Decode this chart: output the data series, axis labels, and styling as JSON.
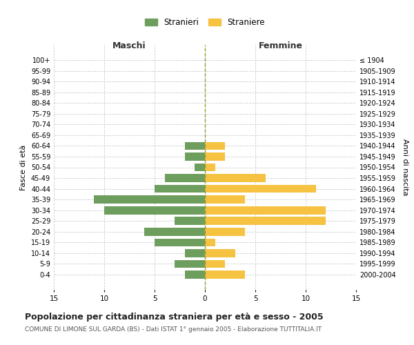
{
  "age_groups": [
    "100+",
    "95-99",
    "90-94",
    "85-89",
    "80-84",
    "75-79",
    "70-74",
    "65-69",
    "60-64",
    "55-59",
    "50-54",
    "45-49",
    "40-44",
    "35-39",
    "30-34",
    "25-29",
    "20-24",
    "15-19",
    "10-14",
    "5-9",
    "0-4"
  ],
  "birth_years": [
    "≤ 1904",
    "1905-1909",
    "1910-1914",
    "1915-1919",
    "1920-1924",
    "1925-1929",
    "1930-1934",
    "1935-1939",
    "1940-1944",
    "1945-1949",
    "1950-1954",
    "1955-1959",
    "1960-1964",
    "1965-1969",
    "1970-1974",
    "1975-1979",
    "1980-1984",
    "1985-1989",
    "1990-1994",
    "1995-1999",
    "2000-2004"
  ],
  "males": [
    0,
    0,
    0,
    0,
    0,
    0,
    0,
    0,
    2,
    2,
    1,
    4,
    5,
    11,
    10,
    3,
    6,
    5,
    2,
    3,
    2
  ],
  "females": [
    0,
    0,
    0,
    0,
    0,
    0,
    0,
    0,
    2,
    2,
    1,
    6,
    11,
    4,
    12,
    12,
    4,
    1,
    3,
    2,
    4
  ],
  "male_color": "#6e9e5e",
  "female_color": "#f5c242",
  "bg_color": "#ffffff",
  "grid_color": "#cccccc",
  "title": "Popolazione per cittadinanza straniera per età e sesso - 2005",
  "subtitle": "COMUNE DI LIMONE SUL GARDA (BS) - Dati ISTAT 1° gennaio 2005 - Elaborazione TUTTITALIA.IT",
  "ylabel_left": "Fasce di età",
  "ylabel_right": "Anni di nascita",
  "legend_stranieri": "Stranieri",
  "legend_straniere": "Straniere",
  "maschi_label": "Maschi",
  "femmine_label": "Femmine",
  "xlim": 15,
  "bar_height": 0.75
}
